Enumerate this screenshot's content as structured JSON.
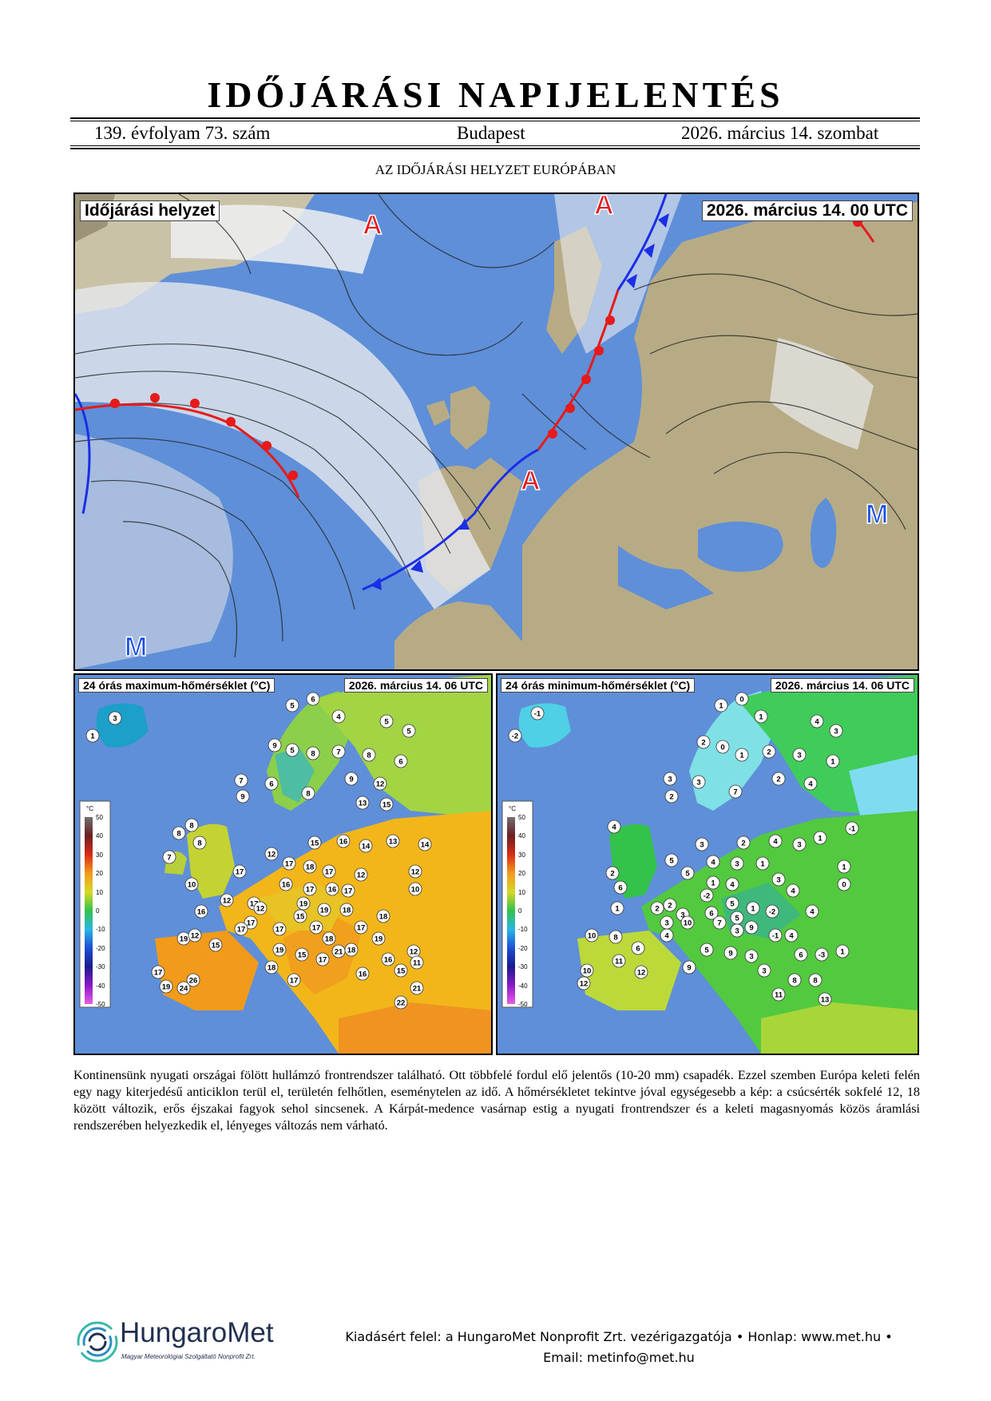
{
  "header": {
    "title": "IDŐJÁRÁSI NAPIJELENTÉS",
    "volume": "139. évfolyam 73. szám",
    "place": "Budapest",
    "date": "2026. március 14. szombat"
  },
  "section_title": "AZ IDŐJÁRÁSI HELYZET EURÓPÁBAN",
  "synoptic_map": {
    "label": "Időjárási helyzet",
    "time": "2026. március 14. 00 UTC",
    "pressure_labels": [
      "A",
      "A",
      "A",
      "M",
      "M"
    ]
  },
  "max_temp_map": {
    "label": "24 órás maximum-hőmérséklet (°C)",
    "time": "2026. március 14. 06 UTC",
    "scale_unit": "°C",
    "scale_ticks": [
      "50",
      "40",
      "30",
      "20",
      "10",
      "0",
      "-10",
      "-20",
      "-30",
      "-40",
      "-50"
    ],
    "stations": [
      "3",
      "1",
      "5",
      "6",
      "4",
      "5",
      "5",
      "9",
      "5",
      "8",
      "7",
      "8",
      "6",
      "7",
      "6",
      "9",
      "8",
      "9",
      "12",
      "13",
      "15",
      "14",
      "8",
      "8",
      "15",
      "16",
      "14",
      "13",
      "7",
      "8",
      "12",
      "17",
      "17",
      "18",
      "17",
      "12",
      "10",
      "16",
      "17",
      "16",
      "12",
      "10",
      "12",
      "17",
      "19",
      "17",
      "16",
      "12",
      "15",
      "19",
      "18",
      "17",
      "17",
      "17",
      "18",
      "19",
      "12",
      "17",
      "18",
      "15",
      "17",
      "19",
      "19",
      "15",
      "17",
      "18",
      "21",
      "16",
      "12",
      "15",
      "11",
      "16",
      "26",
      "18",
      "17",
      "24",
      "19",
      "17",
      "21",
      "22"
    ]
  },
  "min_temp_map": {
    "label": "24 órás minimum-hőmérséklet (°C)",
    "time": "2026. március 14. 06 UTC",
    "scale_unit": "°C",
    "scale_ticks": [
      "50",
      "40",
      "30",
      "20",
      "10",
      "0",
      "-10",
      "-20",
      "-30",
      "-40",
      "-50"
    ],
    "stations": [
      "-1",
      "-2",
      "1",
      "0",
      "1",
      "4",
      "3",
      "2",
      "0",
      "1",
      "2",
      "3",
      "1",
      "3",
      "3",
      "2",
      "7",
      "2",
      "4",
      "-1",
      "3",
      "2",
      "4",
      "3",
      "1",
      "1",
      "4",
      "5",
      "4",
      "3",
      "1",
      "2",
      "6",
      "5",
      "1",
      "4",
      "3",
      "0",
      "2",
      "-2",
      "5",
      "1",
      "4",
      "2",
      "3",
      "6",
      "5",
      "-2",
      "4",
      "1",
      "3",
      "10",
      "7",
      "3",
      "9",
      "-1",
      "4",
      "10",
      "8",
      "4",
      "6",
      "5",
      "9",
      "3",
      "6",
      "-3",
      "1",
      "11",
      "12",
      "9",
      "3",
      "8",
      "8",
      "10",
      "12",
      "11",
      "13"
    ]
  },
  "description": "Kontinensünk nyugati országai fölött hullámzó frontrendszer található. Ott többfelé fordul elő jelentős (10-20 mm) csapadék. Ezzel szemben Európa keleti felén egy nagy kiterjedésű anticiklon terül el, területén felhőtlen, eseménytelen az idő. A hőmérsékletet tekintve jóval egységesebb a kép: a csúcsérték sokfelé 12, 18 között változik, erős éjszakai fagyok sehol sincsenek. A Kárpát-medence vasárnap estig a nyugati frontrendszer és a keleti magasnyomás közös áramlási rendszerében helyezkedik el, lényeges változás nem várható.",
  "footer": {
    "line1": "Kiadásért felel: a HungaroMet Nonprofit Zrt. vezérigazgatója • Honlap: www.met.hu •",
    "line2": "Email: metinfo@met.hu",
    "logo_name": "HungaroMet",
    "logo_subtitle": "Magyar Meteorológiai Szolgáltató Nonprofit Zrt."
  },
  "colors": {
    "sea": "#5f8fd8",
    "land": "#b7ab86",
    "cold_front": "#1a2ee6",
    "warm_front": "#e61a1a",
    "high_label": "#e61a1a",
    "low_label": "#1a4fe6"
  }
}
